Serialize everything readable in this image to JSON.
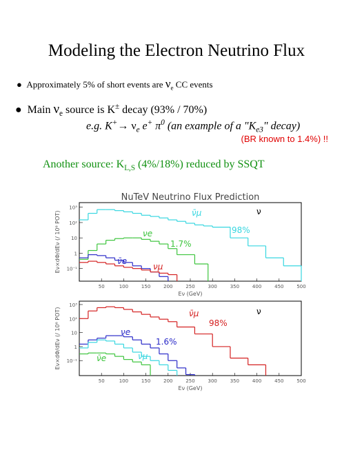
{
  "title": "Modeling the Electron Neutrino Flux",
  "bullets": [
    [
      "Approximately 5% of short events are ",
      "ν",
      "e",
      " CC events"
    ],
    [
      "Main ",
      "ν",
      "e",
      " source is K",
      "±",
      "  decay (93% / 70%)"
    ]
  ],
  "example": [
    "e.g. K",
    "+",
    "→ ",
    "ν",
    "e",
    " e",
    "+",
    " π",
    "0",
    " (an example of a \"K",
    "e3",
    "\" decay)"
  ],
  "note": "(BR known to 1.4%) !!",
  "other_source": [
    "Another source:  K",
    "L,S",
    " (4%/18%) reduced by SSQT"
  ],
  "chart_data": [
    {
      "type": "histogram",
      "title": "NuTeV Neutrino Flux Prediction",
      "ylabel": "Eν×dΦ/dEν (/ 10⁶ POT)",
      "xlabel": "Eν (GeV)",
      "log_y": true,
      "xlim": [
        0,
        500
      ],
      "ylim": [
        0.015,
        2000
      ],
      "xticks": [
        50,
        100,
        150,
        200,
        250,
        300,
        350,
        400,
        450,
        500
      ],
      "yticks": [
        {
          "value": 0.1,
          "label": "10⁻¹"
        },
        1,
        10,
        {
          "value": 100,
          "label": "10²"
        },
        {
          "value": 1000,
          "label": "10³"
        }
      ],
      "series": [
        {
          "name": "ν̄μ",
          "color": "#36d6e0",
          "bins": [
            0,
            20,
            40,
            60,
            80,
            100,
            120,
            140,
            160,
            180,
            200,
            220,
            240,
            260,
            280,
            300,
            340,
            380,
            420,
            460,
            500
          ],
          "values": [
            150,
            400,
            700,
            700,
            600,
            500,
            400,
            300,
            250,
            200,
            150,
            120,
            90,
            70,
            60,
            50,
            10,
            3,
            0.5,
            0.15
          ]
        },
        {
          "name": "νe",
          "color": "#3cc43c",
          "bins": [
            0,
            20,
            40,
            60,
            80,
            100,
            120,
            140,
            160,
            180,
            200,
            220,
            260,
            290
          ],
          "values": [
            0.4,
            1.5,
            4,
            7,
            9,
            10,
            10,
            8,
            6,
            4,
            2,
            0.8,
            0.2
          ]
        },
        {
          "name": "ν̄e",
          "color": "#2a2ac8",
          "bins": [
            0,
            20,
            40,
            60,
            80,
            100,
            120,
            140,
            160,
            180,
            200
          ],
          "values": [
            0.5,
            0.8,
            0.7,
            0.5,
            0.35,
            0.25,
            0.15,
            0.1,
            0.06,
            0.03
          ]
        },
        {
          "name": "νμ",
          "color": "#d42020",
          "bins": [
            0,
            20,
            40,
            60,
            80,
            100,
            120,
            140,
            160,
            180,
            200,
            220
          ],
          "values": [
            0.25,
            0.3,
            0.25,
            0.2,
            0.15,
            0.12,
            0.1,
            0.08,
            0.06,
            0.05,
            0.04
          ]
        }
      ],
      "annotations": [
        {
          "text": "ν",
          "color": "#000000"
        },
        {
          "text": "98%",
          "color": "#36d6e0"
        },
        {
          "text": "1.7%",
          "color": "#3cc43c"
        }
      ]
    },
    {
      "type": "histogram",
      "ylabel": "Eν×dΦ/dEν (/ 10⁶ POT)",
      "xlabel": "Eν (GeV)",
      "log_y": true,
      "xlim": [
        0,
        500
      ],
      "ylim": [
        0.0085,
        1750
      ],
      "xticks": [
        50,
        100,
        150,
        200,
        250,
        300,
        350,
        400,
        450,
        500
      ],
      "yticks": [
        {
          "value": 0.1,
          "label": "10⁻¹"
        },
        1,
        10,
        {
          "value": 100,
          "label": "10²"
        },
        {
          "value": 1000,
          "label": "10³"
        }
      ],
      "series": [
        {
          "name": "ν̄μ",
          "color": "#d42020",
          "bins": [
            0,
            20,
            40,
            60,
            80,
            100,
            120,
            140,
            160,
            180,
            200,
            220,
            260,
            300,
            340,
            380,
            420
          ],
          "values": [
            100,
            350,
            600,
            700,
            600,
            450,
            300,
            200,
            130,
            90,
            60,
            25,
            8,
            1,
            0.15,
            0.05
          ]
        },
        {
          "name": "νe",
          "color": "#2a2ac8",
          "bins": [
            0,
            20,
            40,
            60,
            80,
            100,
            120,
            140,
            160,
            180,
            200,
            220,
            240,
            260
          ],
          "values": [
            1.5,
            3,
            4,
            6,
            6,
            5,
            3,
            1.5,
            0.8,
            0.3,
            0.1,
            0.03,
            0.01
          ]
        },
        {
          "name": "νμ",
          "color": "#36d6e0",
          "bins": [
            0,
            20,
            40,
            60,
            80,
            100,
            120,
            140,
            160,
            180,
            200,
            220
          ],
          "values": [
            0.8,
            2,
            3,
            2.5,
            1.5,
            0.8,
            0.4,
            0.2,
            0.1,
            0.05,
            0.02
          ]
        },
        {
          "name": "ν̄e",
          "color": "#3cc43c",
          "bins": [
            0,
            20,
            40,
            60,
            80,
            100,
            120,
            140,
            160
          ],
          "values": [
            0.3,
            0.35,
            0.35,
            0.3,
            0.2,
            0.12,
            0.08,
            0.05
          ]
        }
      ],
      "annotations": [
        {
          "text": "ν",
          "color": "#000000"
        },
        {
          "text": "98%",
          "color": "#d42020"
        },
        {
          "text": "1.6%",
          "color": "#2a2ac8"
        }
      ]
    }
  ]
}
